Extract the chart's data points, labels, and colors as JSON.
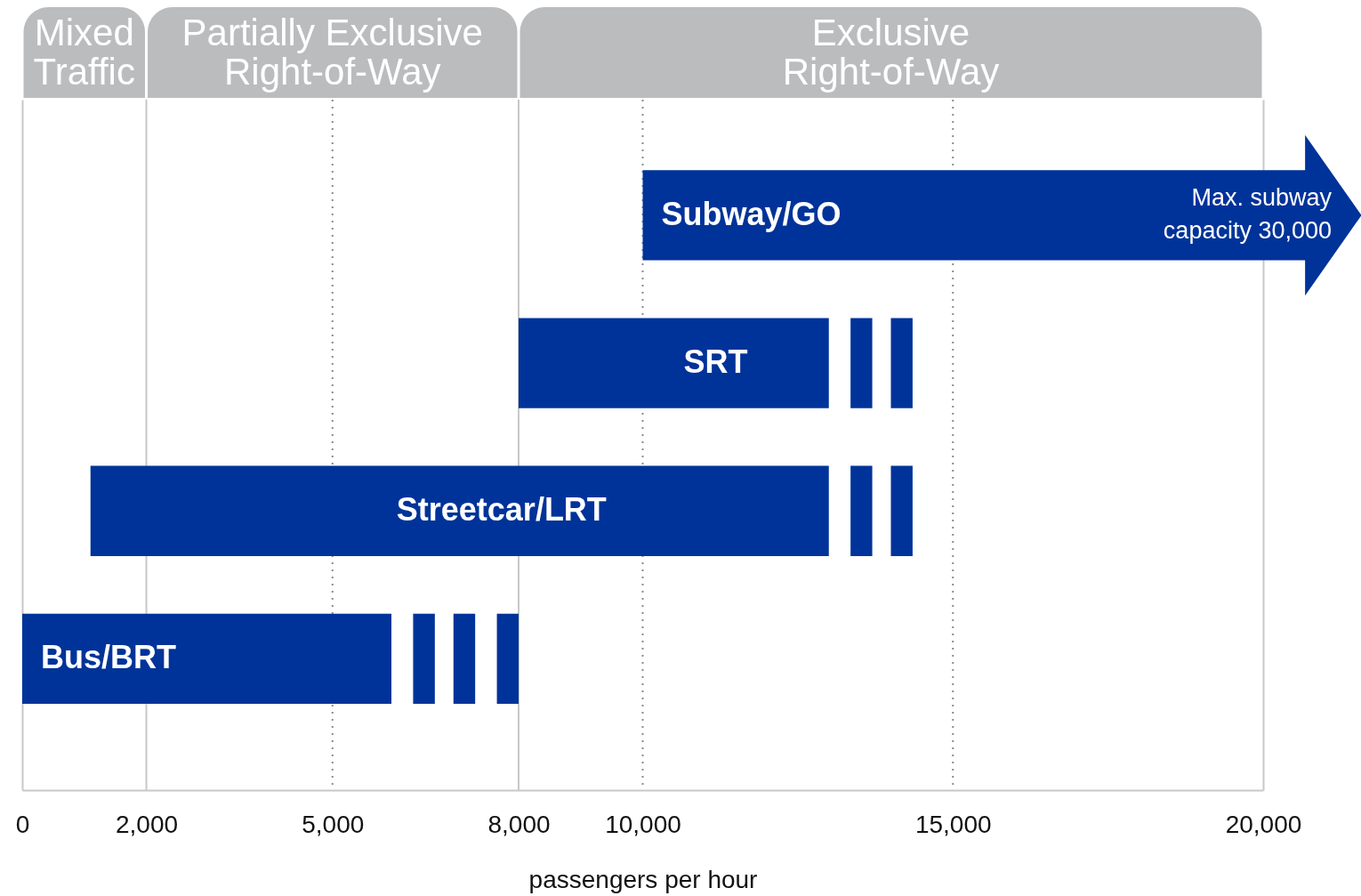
{
  "chart_data": {
    "type": "bar",
    "orientation": "horizontal",
    "categories": [
      "Subway/GO",
      "SRT",
      "Streetcar/LRT",
      "Bus/BRT"
    ],
    "series": [
      {
        "color": "#003399",
        "base": [
          10000,
          8000,
          1100,
          0
        ],
        "values": [
          10000,
          5000,
          11900,
          5950
        ]
      },
      {
        "color": "#003399",
        "base": [
          null,
          13350,
          13350,
          6300
        ],
        "values": [
          null,
          350,
          350,
          350
        ]
      },
      {
        "color": "#003399",
        "base": [
          null,
          14000,
          14000,
          6950
        ],
        "values": [
          null,
          350,
          350,
          350
        ]
      },
      {
        "color": "#003399",
        "base": [
          null,
          null,
          null,
          7650
        ],
        "values": [
          null,
          null,
          null,
          350
        ]
      }
    ],
    "xlim": [
      0,
      20000
    ],
    "xticks": [
      0,
      {
        "value": 2000,
        "label": "2,000"
      },
      {
        "value": 5000,
        "label": "5,000"
      },
      {
        "value": 8000,
        "label": "8,000"
      },
      {
        "value": 10000,
        "label": "10,000"
      },
      {
        "value": 15000,
        "label": "15,000"
      },
      {
        "value": 20000,
        "label": "20,000"
      }
    ],
    "xlabel": "passengers per hour",
    "bands": [
      {
        "axis": "x",
        "from": 0,
        "to": 2000,
        "label": "Mixed\nTraffic",
        "color": "#bbbcbe"
      },
      {
        "axis": "x",
        "from": 2000,
        "to": 8000,
        "label": "Partially Exclusive\nRight-of-Way",
        "color": "#bbbcbe"
      },
      {
        "axis": "x",
        "from": 8000,
        "to": 20000,
        "label": "Exclusive\nRight-of-Way",
        "color": "#bbbcbe"
      }
    ],
    "ref_lines": [
      {
        "axis": "x",
        "value": 2000,
        "color": "#c8c8c8",
        "line_style": "solid"
      },
      {
        "axis": "x",
        "value": 8000,
        "color": "#c8c8c8",
        "line_style": "solid"
      },
      {
        "axis": "x",
        "value": 5000,
        "color": "#8c8c8c",
        "line_style": "dotted"
      },
      {
        "axis": "x",
        "value": 10000,
        "color": "#8c8c8c",
        "line_style": "dotted"
      },
      {
        "axis": "x",
        "value": 15000,
        "color": "#8c8c8c",
        "line_style": "dotted"
      }
    ],
    "annotations": [
      {
        "text": "Max. subway\ncapacity 30,000",
        "x": 20000,
        "y": "Subway/GO"
      }
    ]
  }
}
